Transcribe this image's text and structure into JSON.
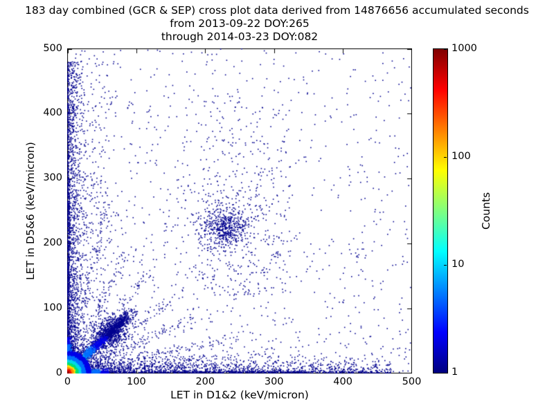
{
  "figure": {
    "background": "#ffffff"
  },
  "chart_data": {
    "type": "heatmap",
    "title": "183 day combined (GCR & SEP) cross plot data derived from 14876656 accumulated seconds",
    "subtitle_lines": [
      "from 2013-09-22 DOY:265",
      "through 2014-03-23 DOY:082"
    ],
    "stats": {
      "duration_days": 183,
      "source": "GCR & SEP combined",
      "accumulated_seconds": 14876656,
      "from_date": "2013-09-22",
      "from_doy": "265",
      "through_date": "2014-03-23",
      "through_doy": "082"
    },
    "xlabel": "LET in D1&2 (keV/micron)",
    "ylabel": "LET in D5&6 (keV/micron)",
    "xlim": [
      0,
      500
    ],
    "ylim": [
      0,
      500
    ],
    "xticks": [
      0,
      100,
      200,
      300,
      400,
      500
    ],
    "yticks": [
      0,
      100,
      200,
      300,
      400,
      500
    ],
    "grid": false,
    "colorbar": {
      "label": "Counts",
      "scale": "log",
      "min": 1,
      "max": 1000,
      "ticks": [
        1,
        10,
        100,
        1000
      ],
      "colormap": "jet",
      "gradient": [
        [
          "#00007f",
          0
        ],
        [
          "#0000ff",
          12.5
        ],
        [
          "#00ffff",
          37.5
        ],
        [
          "#ffff00",
          62.5
        ],
        [
          "#ff0000",
          87.5
        ],
        [
          "#7f0000",
          100
        ]
      ]
    },
    "palette": {
      "navy": "#00008f",
      "blue": "#0000e8",
      "skyblue": "#0070ff",
      "cyan": "#00d8e8",
      "green": "#00e070",
      "yellow": "#ffe000",
      "orange": "#ff8800",
      "red": "#e81500",
      "darkred": "#970000"
    },
    "features": [
      {
        "kind": "powerScatter",
        "n": 1000,
        "xpow": 1.5,
        "ypow": 1.5,
        "color": "navy",
        "s": 1.6
      },
      {
        "kind": "boxScatter",
        "n": 260,
        "x0": 0,
        "x1": 500,
        "y0": 0,
        "y1": 500,
        "color": "navy",
        "s": 1.6
      },
      {
        "kind": "bandH",
        "n": 1400,
        "sigma": 12,
        "xmax": 470,
        "xpow": 1.7,
        "color": "navy",
        "s": 1.6
      },
      {
        "kind": "bandV",
        "n": 1400,
        "sigma": 10,
        "ymax": 480,
        "ypow": 1.7,
        "color": "navy",
        "s": 1.6
      },
      {
        "kind": "boxScatter",
        "n": 500,
        "x0": 0,
        "x1": 3,
        "y0": 0,
        "y1": 300,
        "color": "navy",
        "s": 1.6
      },
      {
        "kind": "boxScatter",
        "n": 120,
        "x0": 0,
        "x1": 2,
        "y0": 300,
        "y1": 470,
        "color": "navy",
        "s": 1.6
      },
      {
        "kind": "boxScatter",
        "n": 450,
        "x0": 0,
        "x1": 360,
        "y0": 0,
        "y1": 3,
        "color": "navy",
        "s": 1.6
      },
      {
        "kind": "boxScatter",
        "n": 80,
        "x0": 360,
        "x1": 470,
        "y0": 0,
        "y1": 3,
        "color": "navy",
        "s": 1.6
      },
      {
        "kind": "boxScatter",
        "n": 300,
        "x0": 195,
        "x1": 325,
        "y0": 120,
        "y1": 430,
        "ypow": 1.3,
        "color": "navy",
        "s": 1.6
      },
      {
        "kind": "boxScatter",
        "n": 260,
        "x0": 0,
        "x1": 70,
        "y0": 100,
        "y1": 480,
        "xpow": 1.8,
        "color": "navy",
        "s": 1.6
      },
      {
        "kind": "ray",
        "n": 200,
        "ex": 58,
        "ey": 255,
        "tpow": 1.6,
        "jitter": 4,
        "color": "navy",
        "s": 1.5
      },
      {
        "kind": "ray",
        "n": 140,
        "ex": 36,
        "ey": 305,
        "tpow": 1.6,
        "jitter": 4,
        "color": "navy",
        "s": 1.5
      },
      {
        "kind": "ray",
        "n": 170,
        "ex": 85,
        "ey": 185,
        "tpow": 1.6,
        "jitter": 4,
        "color": "navy",
        "s": 1.5
      },
      {
        "kind": "ray",
        "n": 150,
        "ex": 115,
        "ey": 150,
        "tpow": 1.6,
        "jitter": 5,
        "color": "navy",
        "s": 1.5
      },
      {
        "kind": "ray",
        "n": 150,
        "ex": 150,
        "ey": 112,
        "tpow": 1.6,
        "jitter": 5,
        "color": "navy",
        "s": 1.5
      },
      {
        "kind": "ray",
        "n": 190,
        "ex": 255,
        "ey": 58,
        "tpow": 1.6,
        "jitter": 4,
        "color": "navy",
        "s": 1.5
      },
      {
        "kind": "ray",
        "n": 130,
        "ex": 305,
        "ey": 36,
        "tpow": 1.6,
        "jitter": 4,
        "color": "navy",
        "s": 1.5
      },
      {
        "kind": "ray",
        "n": 160,
        "ex": 185,
        "ey": 85,
        "tpow": 1.6,
        "jitter": 4,
        "color": "navy",
        "s": 1.5
      },
      {
        "kind": "blob",
        "n": 550,
        "cx": 63,
        "cy": 63,
        "sx": 13,
        "sy": 13,
        "color": "navy",
        "s": 1.6
      },
      {
        "kind": "diag",
        "n": 900,
        "len": 95,
        "tpow": 1.7,
        "spread": 6,
        "rings": [
          [
            999,
            "navy"
          ]
        ],
        "s": 1.6
      },
      {
        "kind": "diag",
        "n": 1600,
        "len": 85,
        "tpow": 1.7,
        "spread": 2.5,
        "rings": [
          [
            14,
            "green"
          ],
          [
            24,
            "cyan"
          ],
          [
            38,
            "skyblue"
          ],
          [
            55,
            "blue"
          ],
          [
            999,
            "navy"
          ]
        ],
        "s": 1.6
      },
      {
        "kind": "blob",
        "n": 380,
        "cx": 230,
        "cy": 222,
        "sx": 15,
        "sy": 13,
        "color": "navy",
        "s": 1.6
      },
      {
        "kind": "blob",
        "n": 260,
        "cx": 235,
        "cy": 225,
        "sx": 38,
        "sy": 32,
        "color": "navy",
        "s": 1.6
      },
      {
        "kind": "streakX",
        "n": 700,
        "len": 60,
        "tpow": 2,
        "sigma": 2.5,
        "rings": [
          [
            18,
            "green"
          ],
          [
            32,
            "cyan"
          ],
          [
            48,
            "skyblue"
          ],
          [
            999,
            "blue"
          ]
        ],
        "s": 1.6
      },
      {
        "kind": "streakY",
        "n": 600,
        "len": 55,
        "tpow": 2,
        "sigma": 2.5,
        "rings": [
          [
            16,
            "green"
          ],
          [
            30,
            "cyan"
          ],
          [
            45,
            "skyblue"
          ],
          [
            999,
            "blue"
          ]
        ],
        "s": 1.6
      },
      {
        "kind": "hotspot",
        "n": 7000,
        "rmax": 34,
        "rpow": 3.2,
        "rings": [
          [
            3,
            "darkred"
          ],
          [
            6,
            "red"
          ],
          [
            9,
            "orange"
          ],
          [
            12,
            "yellow"
          ],
          [
            16,
            "green"
          ],
          [
            21,
            "cyan"
          ],
          [
            27,
            "skyblue"
          ],
          [
            999,
            "blue"
          ]
        ],
        "s": 1.8
      }
    ]
  }
}
